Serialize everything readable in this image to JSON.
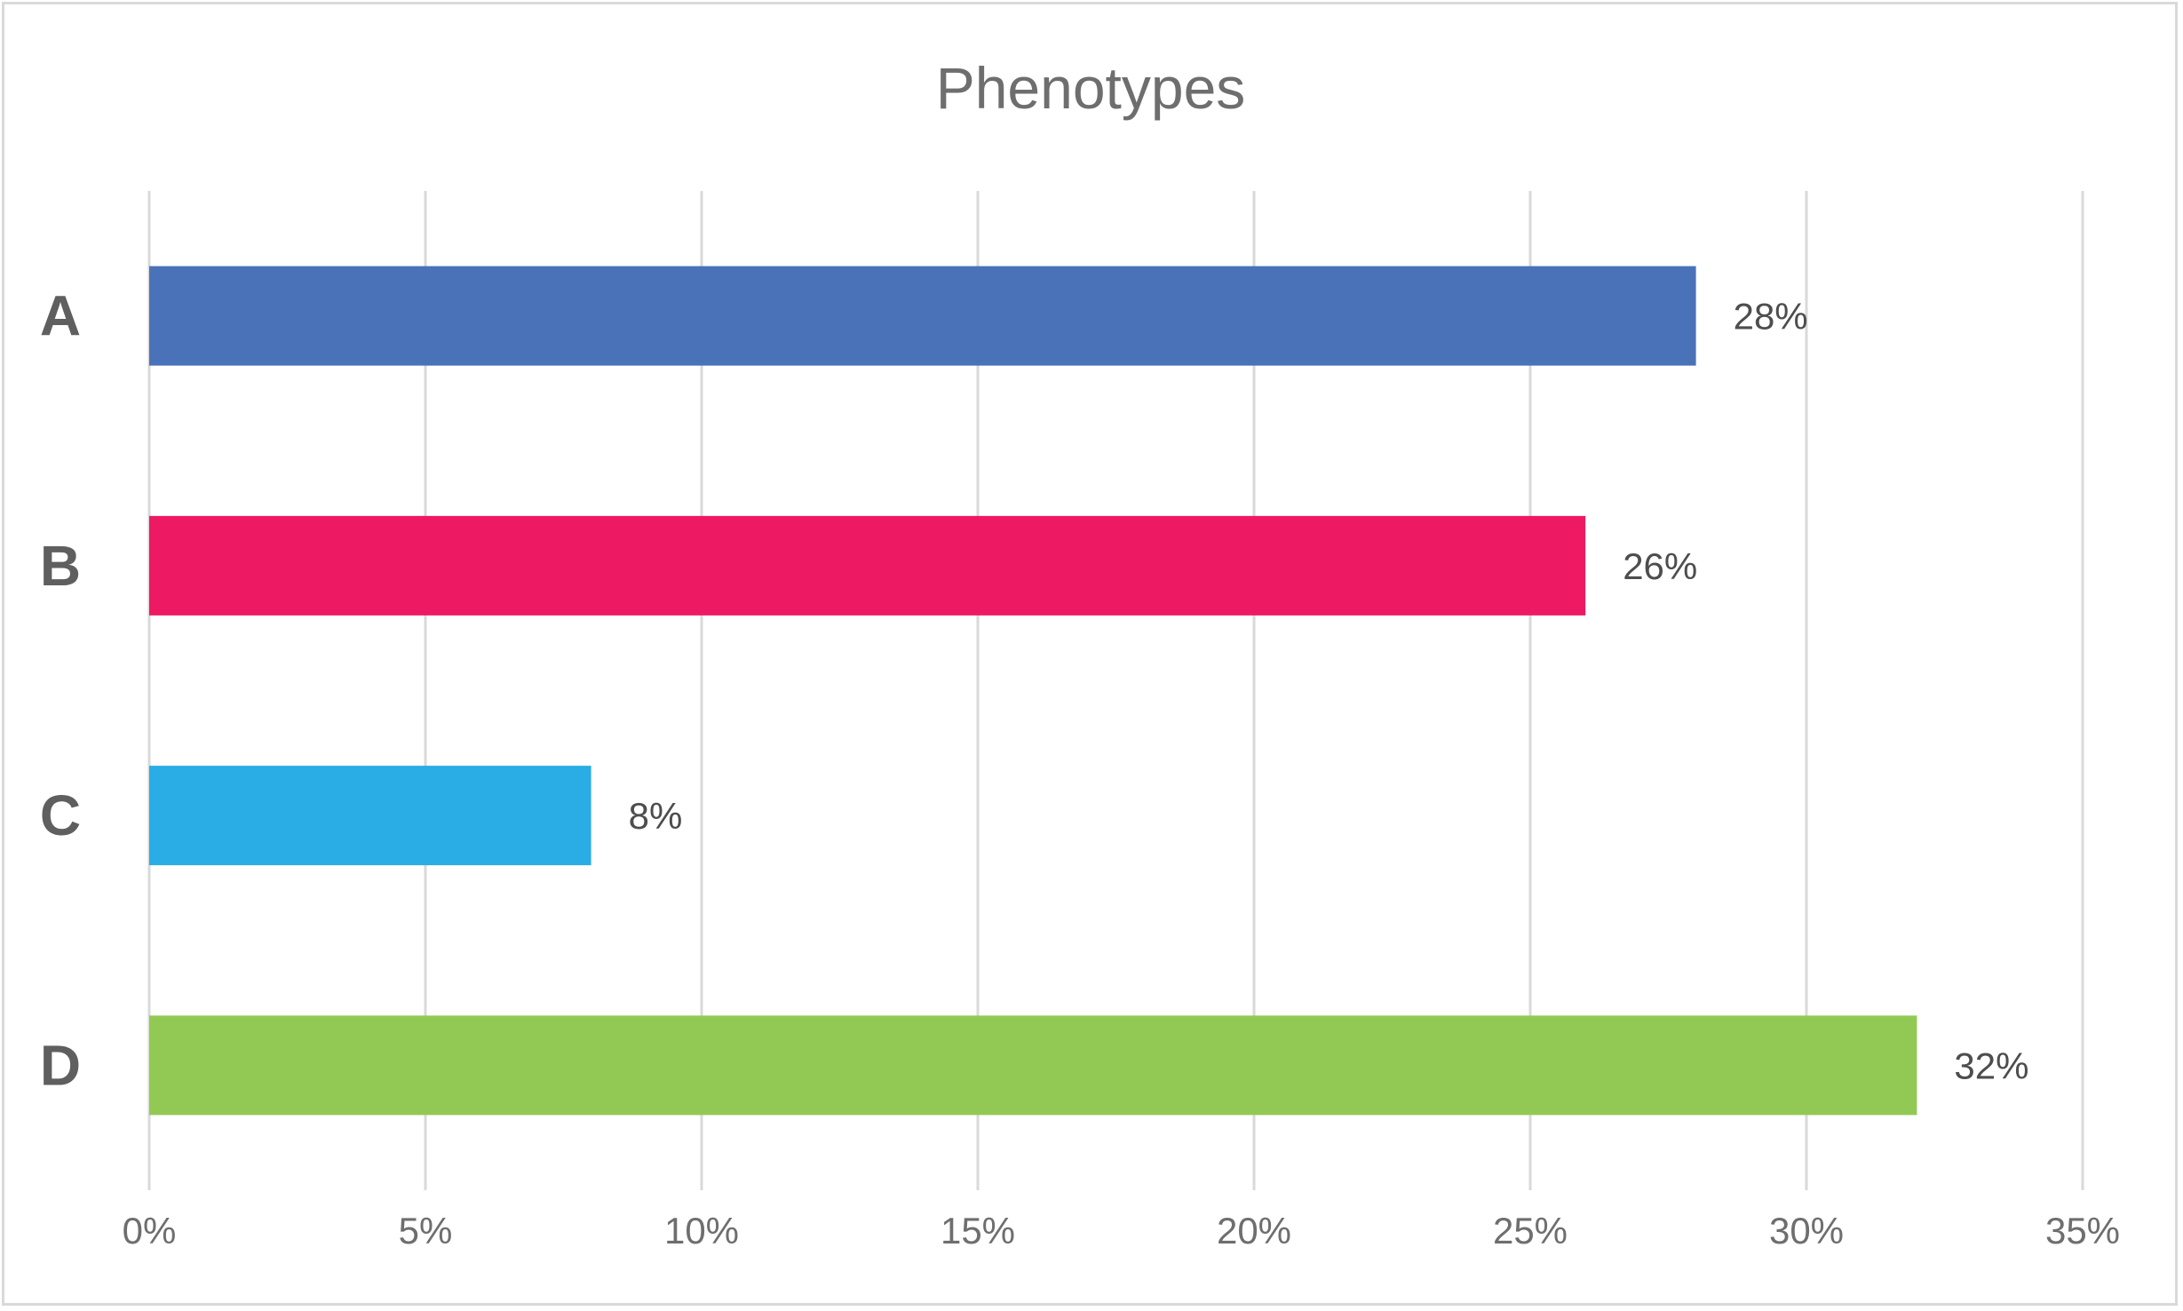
{
  "chart_data": {
    "type": "bar",
    "orientation": "horizontal",
    "title": "Phenotypes",
    "categories": [
      "A",
      "B",
      "C",
      "D"
    ],
    "values": [
      28,
      26,
      8,
      32
    ],
    "data_labels": [
      "28%",
      "26%",
      "8%",
      "32%"
    ],
    "colors": [
      "#4a72b8",
      "#ed1a63",
      "#29ade4",
      "#92c955"
    ],
    "xlim": [
      0,
      35
    ],
    "x_ticks": [
      0,
      5,
      10,
      15,
      20,
      25,
      30,
      35
    ],
    "x_tick_labels": [
      "0%",
      "5%",
      "10%",
      "15%",
      "20%",
      "25%",
      "30%",
      "35%"
    ],
    "xlabel": "",
    "ylabel": "",
    "grid": "vertical",
    "legend": "none"
  }
}
